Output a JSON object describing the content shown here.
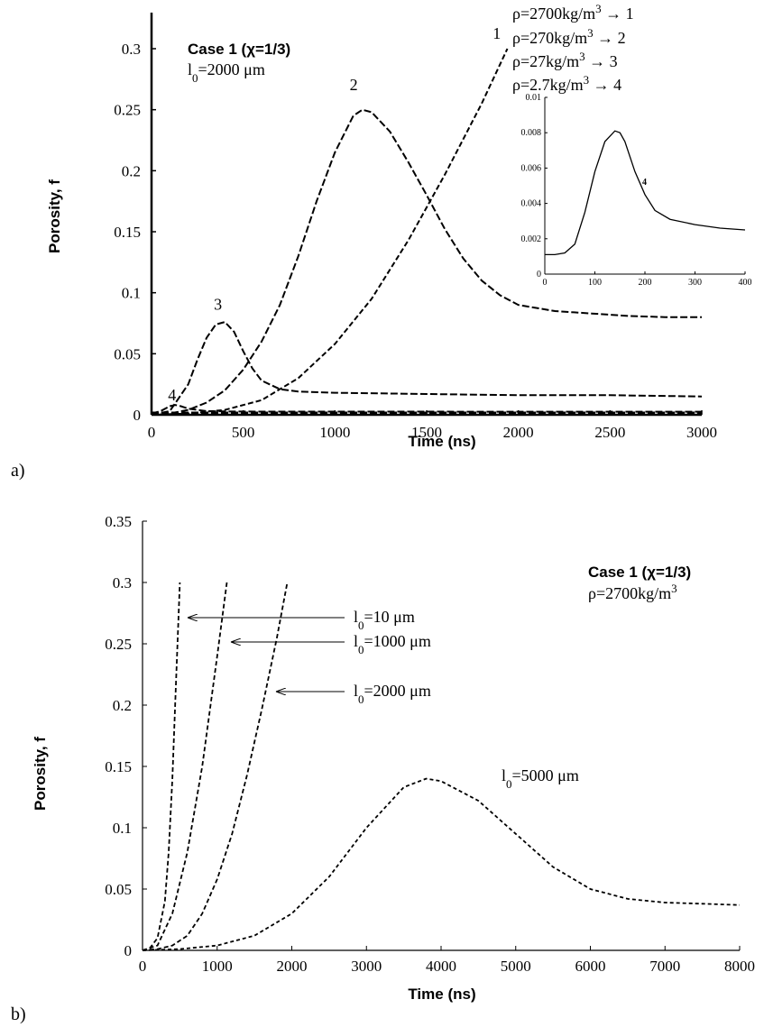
{
  "chart_data": [
    {
      "type": "line",
      "panel_label": "a)",
      "xlabel": "Time (ns)",
      "ylabel": "Porosity, f",
      "xlim": [
        0,
        3000
      ],
      "ylim": [
        0,
        0.32
      ],
      "xticks": [
        "0",
        "500",
        "1000",
        "1500",
        "2000",
        "2500",
        "3000"
      ],
      "yticks": [
        "0",
        "0.05",
        "0.1",
        "0.15",
        "0.2",
        "0.25",
        "0.3"
      ],
      "case_title": "Case 1 (χ=1/3)",
      "case_param": "l0=2000 μm",
      "legend": [
        "ρ=2700kg/m3 → 1",
        "ρ=270kg/m3 → 2",
        "ρ=27kg/m3 → 3",
        "ρ=2.7kg/m3 → 4"
      ],
      "series": [
        {
          "name": "1",
          "x": [
            0,
            200,
            400,
            600,
            800,
            1000,
            1200,
            1400,
            1600,
            1800,
            1940
          ],
          "y": [
            0,
            0.001,
            0.004,
            0.012,
            0.03,
            0.058,
            0.095,
            0.143,
            0.197,
            0.255,
            0.3
          ]
        },
        {
          "name": "2",
          "x": [
            0,
            100,
            200,
            300,
            400,
            500,
            600,
            700,
            800,
            900,
            1000,
            1100,
            1150,
            1200,
            1300,
            1400,
            1500,
            1600,
            1700,
            1800,
            1900,
            2000,
            2200,
            2400,
            2600,
            2800,
            3000
          ],
          "y": [
            0,
            0.001,
            0.004,
            0.01,
            0.02,
            0.037,
            0.06,
            0.09,
            0.13,
            0.175,
            0.215,
            0.245,
            0.25,
            0.248,
            0.232,
            0.207,
            0.18,
            0.152,
            0.128,
            0.11,
            0.098,
            0.09,
            0.085,
            0.083,
            0.081,
            0.08,
            0.08
          ]
        },
        {
          "name": "3",
          "x": [
            0,
            100,
            200,
            250,
            300,
            350,
            400,
            450,
            500,
            550,
            600,
            700,
            800,
            1000,
            1500,
            2000,
            2500,
            3000
          ],
          "y": [
            0,
            0.003,
            0.025,
            0.045,
            0.063,
            0.074,
            0.076,
            0.068,
            0.052,
            0.038,
            0.028,
            0.021,
            0.019,
            0.018,
            0.017,
            0.016,
            0.016,
            0.015
          ]
        },
        {
          "name": "4",
          "x": [
            0,
            50,
            100,
            130,
            160,
            200,
            250,
            300,
            400,
            600,
            1000,
            2000,
            3000
          ],
          "y": [
            0.001,
            0.003,
            0.007,
            0.008,
            0.007,
            0.005,
            0.004,
            0.003,
            0.0027,
            0.0026,
            0.0026,
            0.0025,
            0.0025
          ]
        }
      ],
      "curve_labels": [
        "1",
        "2",
        "3",
        "4"
      ],
      "inset": {
        "xlim": [
          0,
          400
        ],
        "ylim": [
          0,
          0.01
        ],
        "xticks": [
          "0",
          "100",
          "200",
          "300",
          "400"
        ],
        "yticks": [
          "0",
          "0.002",
          "0.004",
          "0.006",
          "0.008",
          "0.01"
        ],
        "label": "4",
        "x": [
          0,
          20,
          40,
          60,
          80,
          100,
          120,
          140,
          150,
          160,
          180,
          200,
          220,
          250,
          300,
          350,
          400
        ],
        "y": [
          0.0011,
          0.0011,
          0.0012,
          0.0017,
          0.0035,
          0.0058,
          0.0075,
          0.0081,
          0.008,
          0.0075,
          0.0058,
          0.0045,
          0.0036,
          0.0031,
          0.0028,
          0.0026,
          0.0025
        ]
      }
    },
    {
      "type": "line",
      "panel_label": "b)",
      "xlabel": "Time (ns)",
      "ylabel": "Porosity, f",
      "xlim": [
        0,
        8000
      ],
      "ylim": [
        0,
        0.35
      ],
      "xticks": [
        "0",
        "1000",
        "2000",
        "3000",
        "4000",
        "5000",
        "6000",
        "7000",
        "8000"
      ],
      "yticks": [
        "0",
        "0.05",
        "0.1",
        "0.15",
        "0.2",
        "0.25",
        "0.3",
        "0.35"
      ],
      "case_title": "Case 1 (χ=1/3)",
      "case_param": "ρ=2700kg/m3",
      "series": [
        {
          "name": "l0=10 μm",
          "x": [
            0,
            100,
            200,
            300,
            350,
            400,
            450,
            500
          ],
          "y": [
            0,
            0.002,
            0.01,
            0.04,
            0.08,
            0.14,
            0.22,
            0.3
          ]
        },
        {
          "name": "l0=1000 μm",
          "x": [
            0,
            200,
            400,
            600,
            800,
            1000,
            1130
          ],
          "y": [
            0,
            0.004,
            0.03,
            0.08,
            0.15,
            0.24,
            0.3
          ]
        },
        {
          "name": "l0=2000 μm",
          "x": [
            0,
            200,
            400,
            600,
            800,
            1000,
            1200,
            1400,
            1600,
            1800,
            1940
          ],
          "y": [
            0,
            0.001,
            0.004,
            0.012,
            0.03,
            0.058,
            0.095,
            0.143,
            0.197,
            0.255,
            0.3
          ]
        },
        {
          "name": "l0=5000 μm",
          "x": [
            0,
            500,
            1000,
            1500,
            2000,
            2500,
            3000,
            3500,
            3800,
            4000,
            4500,
            5000,
            5500,
            6000,
            6500,
            7000,
            7500,
            8000
          ],
          "y": [
            0,
            0.001,
            0.004,
            0.012,
            0.03,
            0.06,
            0.1,
            0.133,
            0.14,
            0.138,
            0.122,
            0.095,
            0.068,
            0.05,
            0.042,
            0.039,
            0.038,
            0.037
          ]
        }
      ],
      "annotations": [
        "l0=10 μm",
        "l0=1000 μm",
        "l0=2000 μm",
        "l0=5000 μm"
      ]
    }
  ]
}
